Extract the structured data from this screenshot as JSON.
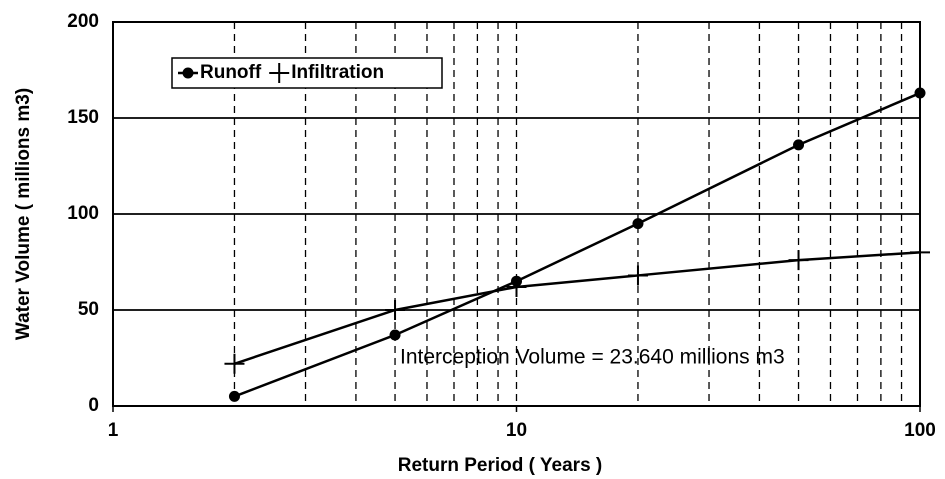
{
  "chart_data": {
    "type": "line",
    "xlabel": "Return Period ( Years )",
    "ylabel": "Water Volume ( millions m3)",
    "annotation": "Interception Volume = 23.640  millions m3",
    "x": [
      2,
      5,
      10,
      20,
      50,
      100
    ],
    "series": [
      {
        "name": "Runoff",
        "color": "#000000",
        "marker": "circle",
        "values": [
          5,
          37,
          65,
          95,
          136,
          163
        ]
      },
      {
        "name": "Infiltration",
        "color": "#000000",
        "marker": "plus",
        "values": [
          22,
          50,
          62,
          68,
          76,
          80
        ]
      }
    ],
    "xscale": "log",
    "xlim": [
      1,
      100
    ],
    "xticks": [
      1,
      10,
      100
    ],
    "xgrid": [
      2,
      3,
      4,
      5,
      6,
      7,
      8,
      9,
      10,
      20,
      30,
      40,
      50,
      60,
      70,
      80,
      90
    ],
    "ylim": [
      0,
      200
    ],
    "yticks": [
      0,
      50,
      100,
      150,
      200
    ],
    "grid": true,
    "legend": "upper left"
  }
}
